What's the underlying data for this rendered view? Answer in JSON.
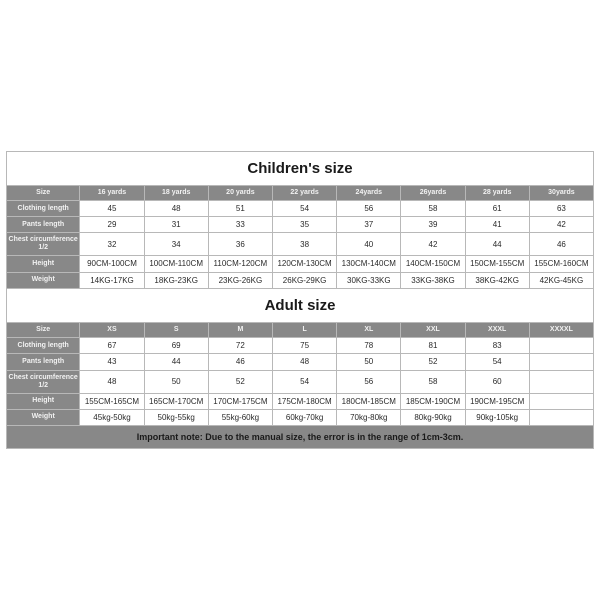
{
  "children": {
    "title": "Children's size",
    "headers": [
      "Size",
      "16 yards",
      "18 yards",
      "20 yards",
      "22 yards",
      "24yards",
      "26yards",
      "28 yards",
      "30yards"
    ],
    "rows": [
      {
        "label": "Clothing length",
        "cells": [
          "45",
          "48",
          "51",
          "54",
          "56",
          "58",
          "61",
          "63"
        ]
      },
      {
        "label": "Pants length",
        "cells": [
          "29",
          "31",
          "33",
          "35",
          "37",
          "39",
          "41",
          "42"
        ]
      },
      {
        "label": "Chest circumference 1/2",
        "cells": [
          "32",
          "34",
          "36",
          "38",
          "40",
          "42",
          "44",
          "46"
        ]
      },
      {
        "label": "Height",
        "cells": [
          "90CM-100CM",
          "100CM-110CM",
          "110CM-120CM",
          "120CM-130CM",
          "130CM-140CM",
          "140CM-150CM",
          "150CM-155CM",
          "155CM-160CM"
        ]
      },
      {
        "label": "Weight",
        "cells": [
          "14KG-17KG",
          "18KG-23KG",
          "23KG-26KG",
          "26KG-29KG",
          "30KG-33KG",
          "33KG-38KG",
          "38KG-42KG",
          "42KG-45KG"
        ]
      }
    ]
  },
  "adult": {
    "title": "Adult size",
    "headers": [
      "Size",
      "XS",
      "S",
      "M",
      "L",
      "XL",
      "XXL",
      "XXXL",
      "XXXXL"
    ],
    "rows": [
      {
        "label": "Clothing length",
        "cells": [
          "67",
          "69",
          "72",
          "75",
          "78",
          "81",
          "83",
          ""
        ]
      },
      {
        "label": "Pants length",
        "cells": [
          "43",
          "44",
          "46",
          "48",
          "50",
          "52",
          "54",
          ""
        ]
      },
      {
        "label": "Chest circumference 1/2",
        "cells": [
          "48",
          "50",
          "52",
          "54",
          "56",
          "58",
          "60",
          ""
        ]
      },
      {
        "label": "Height",
        "cells": [
          "155CM-165CM",
          "165CM-170CM",
          "170CM-175CM",
          "175CM-180CM",
          "180CM-185CM",
          "185CM-190CM",
          "190CM-195CM",
          ""
        ]
      },
      {
        "label": "Weight",
        "cells": [
          "45kg-50kg",
          "50kg-55kg",
          "55kg-60kg",
          "60kg-70kg",
          "70kg-80kg",
          "80kg-90kg",
          "90kg-105kg",
          ""
        ]
      }
    ]
  },
  "note": "Important note: Due to the manual size, the error is in the range of 1cm-3cm.",
  "style": {
    "header_bg": "#888888",
    "header_fg": "#f2f2f2",
    "cell_fg": "#2a2a2a",
    "border": "#b8b8b8",
    "title_fontsize": 15,
    "cell_fontsize": 8,
    "header_fontsize": 7,
    "note_fontsize": 9
  }
}
